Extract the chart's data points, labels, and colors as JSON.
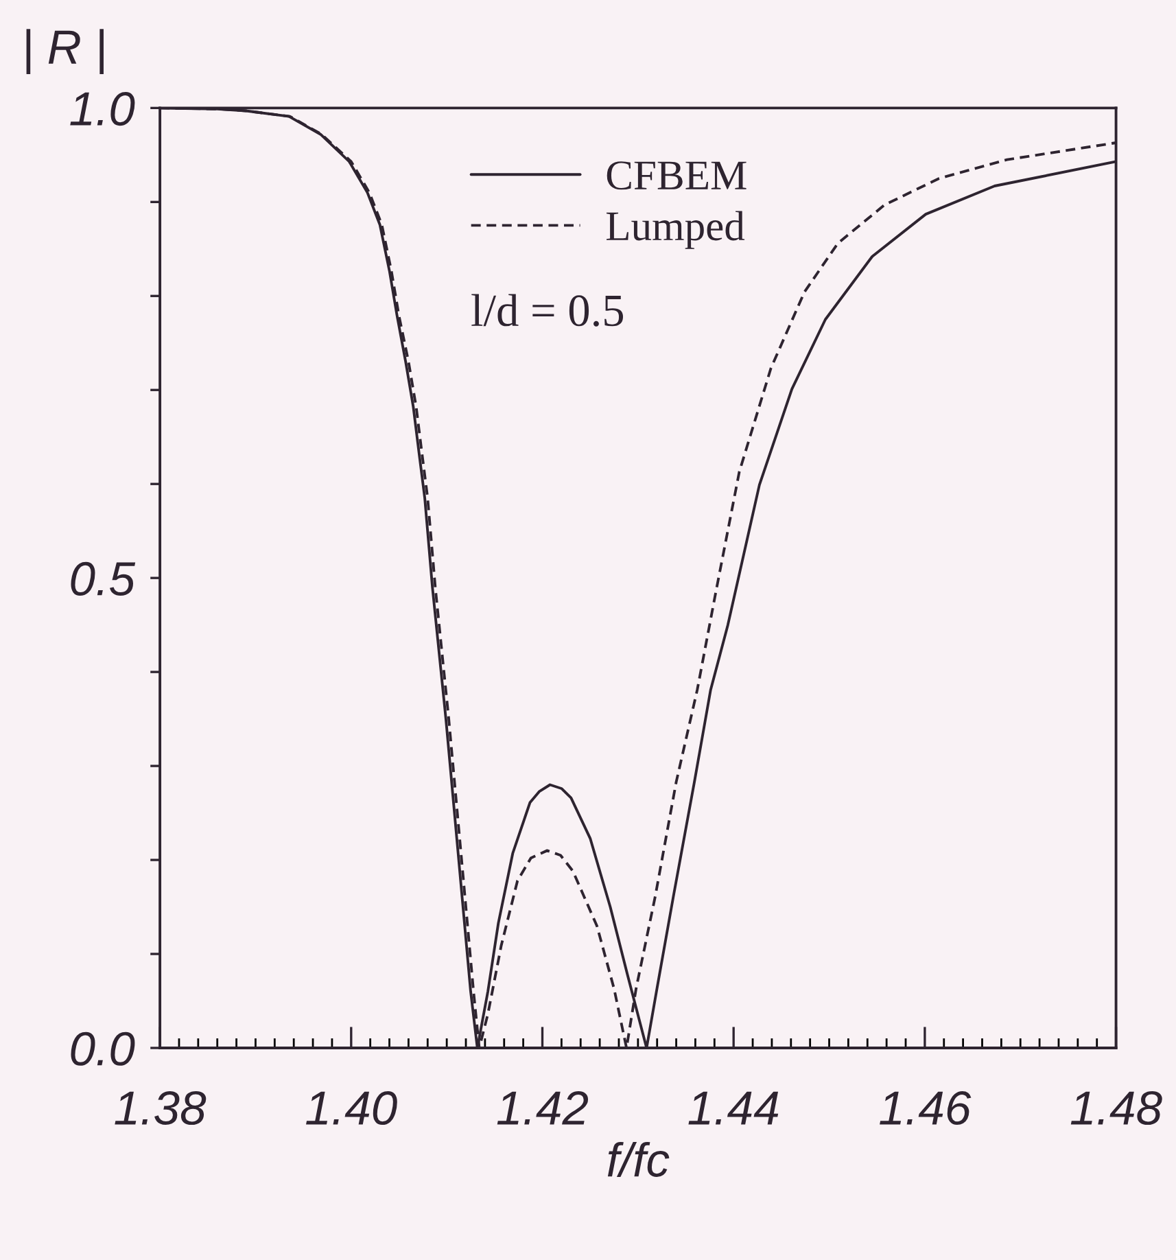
{
  "chart_data": {
    "type": "line",
    "xlabel": "f/fc",
    "ylabel": "| R |",
    "legend": "top",
    "annotations": [
      "l/d = 0.5"
    ],
    "xlim": [
      1.38,
      1.48
    ],
    "ylim": [
      0,
      1
    ],
    "xticks": [
      1.38,
      {
        "value": 1.382,
        "label": null
      },
      {
        "value": 1.384,
        "label": null
      },
      {
        "value": 1.386,
        "label": null
      },
      {
        "value": 1.388,
        "label": null
      },
      {
        "value": 1.39,
        "label": null
      },
      {
        "value": 1.392,
        "label": null
      },
      {
        "value": 1.394,
        "label": null
      },
      {
        "value": 1.396,
        "label": null
      },
      {
        "value": 1.398,
        "label": null
      },
      {
        "value": 1.4,
        "label": "1.40"
      },
      {
        "value": 1.402,
        "label": null
      },
      {
        "value": 1.404,
        "label": null
      },
      {
        "value": 1.406,
        "label": null
      },
      {
        "value": 1.408,
        "label": null
      },
      {
        "value": 1.41,
        "label": null
      },
      {
        "value": 1.412,
        "label": null
      },
      {
        "value": 1.414,
        "label": null
      },
      {
        "value": 1.416,
        "label": null
      },
      {
        "value": 1.418,
        "label": null
      },
      1.42,
      {
        "value": 1.422,
        "label": null
      },
      {
        "value": 1.424,
        "label": null
      },
      {
        "value": 1.426,
        "label": null
      },
      {
        "value": 1.428,
        "label": null
      },
      {
        "value": 1.43,
        "label": null
      },
      {
        "value": 1.432,
        "label": null
      },
      {
        "value": 1.434,
        "label": null
      },
      {
        "value": 1.436,
        "label": null
      },
      {
        "value": 1.438,
        "label": null
      },
      1.44,
      {
        "value": 1.442,
        "label": null
      },
      {
        "value": 1.444,
        "label": null
      },
      {
        "value": 1.446,
        "label": null
      },
      {
        "value": 1.448,
        "label": null
      },
      {
        "value": 1.45,
        "label": null
      },
      {
        "value": 1.452,
        "label": null
      },
      {
        "value": 1.454,
        "label": null
      },
      {
        "value": 1.456,
        "label": null
      },
      {
        "value": 1.458,
        "label": null
      },
      1.46,
      {
        "value": 1.462,
        "label": null
      },
      {
        "value": 1.464,
        "label": null
      },
      {
        "value": 1.466,
        "label": null
      },
      {
        "value": 1.468,
        "label": null
      },
      {
        "value": 1.47,
        "label": null
      },
      {
        "value": 1.472,
        "label": null
      },
      {
        "value": 1.474,
        "label": null
      },
      {
        "value": 1.476,
        "label": null
      },
      {
        "value": 1.478,
        "label": null
      },
      1.48
    ],
    "yticks": [
      {
        "value": 0,
        "label": "0.0"
      },
      {
        "value": 0.1,
        "label": null
      },
      {
        "value": 0.2,
        "label": null
      },
      {
        "value": 0.3,
        "label": null
      },
      {
        "value": 0.4,
        "label": null
      },
      0.5,
      {
        "value": 0.6,
        "label": null
      },
      {
        "value": 0.7,
        "label": null
      },
      {
        "value": 0.8,
        "label": null
      },
      {
        "value": 0.9,
        "label": null
      },
      {
        "value": 1,
        "label": "1.0"
      }
    ],
    "series": [
      {
        "name": "CFBEM",
        "color": "#2e2430",
        "line_style": "solid",
        "x": [
          1.38,
          1.386,
          1.389,
          1.3935,
          1.3968,
          1.3998,
          1.4017,
          1.403,
          1.404,
          1.4048,
          1.4057,
          1.4065,
          1.4071,
          1.4077,
          1.4085,
          1.4099,
          1.4112,
          1.4125,
          1.4132,
          1.4143,
          1.4154,
          1.4169,
          1.4187,
          1.4197,
          1.4208,
          1.422,
          1.423,
          1.425,
          1.4271,
          1.4289,
          1.4309,
          1.432,
          1.4337,
          1.4359,
          1.4376,
          1.4394,
          1.4427,
          1.4461,
          1.4496,
          1.4545,
          1.4601,
          1.4673,
          1.48
        ],
        "values": [
          1.0,
          0.999,
          0.997,
          0.991,
          0.972,
          0.943,
          0.91,
          0.876,
          0.827,
          0.779,
          0.73,
          0.682,
          0.633,
          0.585,
          0.49,
          0.351,
          0.206,
          0.06,
          0.0,
          0.06,
          0.133,
          0.207,
          0.261,
          0.273,
          0.28,
          0.276,
          0.266,
          0.223,
          0.15,
          0.078,
          0.0,
          0.064,
          0.161,
          0.283,
          0.381,
          0.45,
          0.599,
          0.701,
          0.775,
          0.842,
          0.887,
          0.917,
          0.943
        ]
      },
      {
        "name": "Lumped",
        "color": "#2e2430",
        "line_style": "dashed",
        "x": [
          1.38,
          1.386,
          1.389,
          1.3936,
          1.3969,
          1.4,
          1.4019,
          1.4032,
          1.4042,
          1.405,
          1.406,
          1.4068,
          1.4074,
          1.408,
          1.4088,
          1.4102,
          1.4115,
          1.4128,
          1.4134,
          1.4143,
          1.4157,
          1.4174,
          1.4188,
          1.4205,
          1.4219,
          1.4232,
          1.4257,
          1.4275,
          1.4288,
          1.4298,
          1.4318,
          1.434,
          1.4362,
          1.4382,
          1.4406,
          1.4439,
          1.4474,
          1.4509,
          1.4558,
          1.4615,
          1.4686,
          1.48
        ],
        "values": [
          1.0,
          0.999,
          0.997,
          0.991,
          0.972,
          0.943,
          0.91,
          0.876,
          0.827,
          0.779,
          0.73,
          0.682,
          0.633,
          0.585,
          0.49,
          0.351,
          0.206,
          0.06,
          0.0,
          0.036,
          0.109,
          0.178,
          0.202,
          0.21,
          0.205,
          0.188,
          0.13,
          0.063,
          0.0,
          0.063,
          0.161,
          0.283,
          0.381,
          0.488,
          0.613,
          0.723,
          0.804,
          0.856,
          0.897,
          0.925,
          0.945,
          0.963
        ]
      }
    ]
  }
}
